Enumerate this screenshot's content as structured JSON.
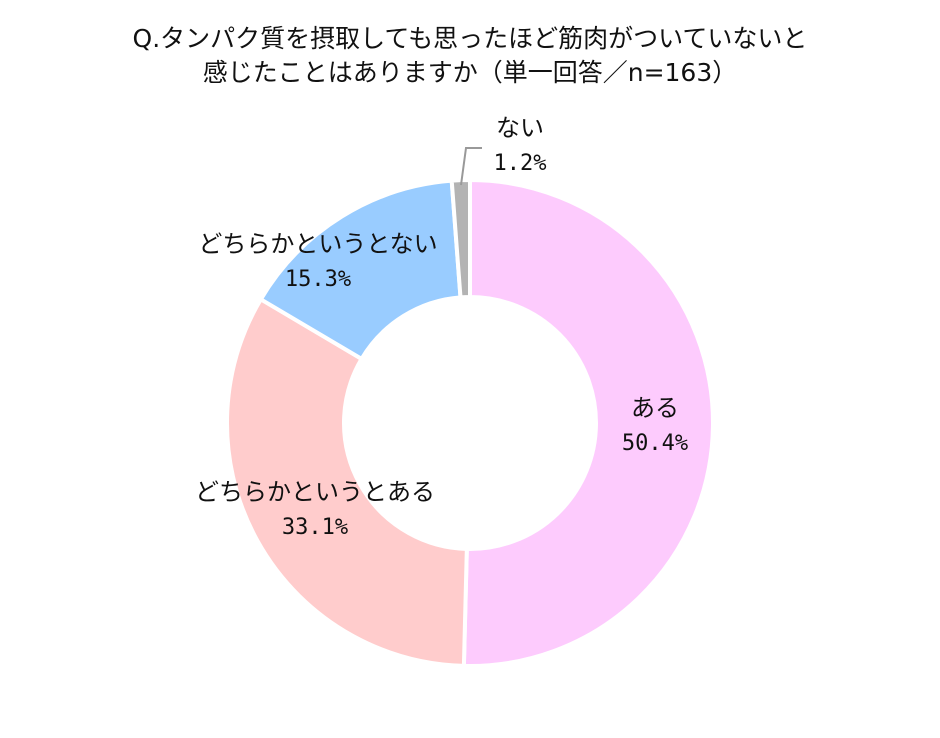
{
  "chart_data": {
    "type": "pie",
    "title_line1": "Q.タンパク質を摂取しても思ったほど筋肉がついていないと",
    "title_line2": "感じたことはありますか（単一回答／n=163）",
    "categories": [
      "ある",
      "どちらかというとある",
      "どちらかというとない",
      "ない"
    ],
    "values": [
      50.4,
      33.1,
      15.3,
      1.2
    ],
    "value_labels": [
      "50.4%",
      "33.1%",
      "15.3%",
      "1.2%"
    ],
    "colors": [
      "#fdcbfd",
      "#ffcccc",
      "#99ccff",
      "#b3b3b3"
    ],
    "legend": "none"
  }
}
